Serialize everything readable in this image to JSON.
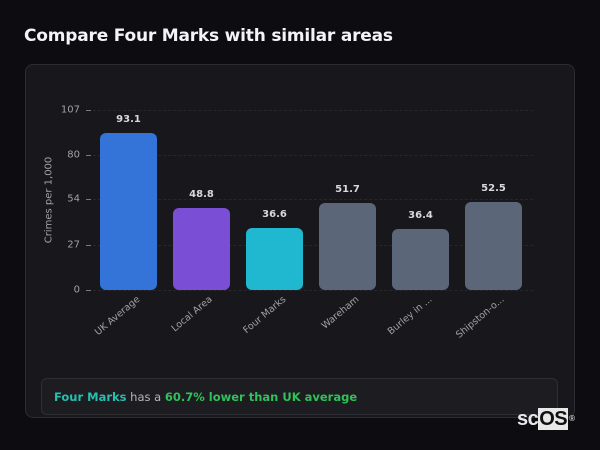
{
  "header": {
    "title": "Compare Four Marks with similar areas"
  },
  "chart_data": {
    "type": "bar",
    "title": "Compare Four Marks with similar areas",
    "xlabel": "",
    "ylabel": "Crimes per 1,000",
    "ylim": [
      0,
      107
    ],
    "yticks": [
      0,
      27,
      54,
      80,
      107
    ],
    "grid": true,
    "legend": null,
    "categories": [
      "UK Average",
      "Local Area",
      "Four Marks",
      "Wareham",
      "Burley in ...",
      "Shipston-o..."
    ],
    "values": [
      93.1,
      48.8,
      36.6,
      51.7,
      36.4,
      52.5
    ],
    "value_labels": [
      "93.1",
      "48.8",
      "36.6",
      "51.7",
      "36.4",
      "52.5"
    ],
    "colors": [
      "#3474d9",
      "#7a4fd6",
      "#1fb8d0",
      "#5b6678",
      "#5b6678",
      "#5b6678"
    ]
  },
  "summary": {
    "place": "Four Marks",
    "connector": " has a ",
    "stat": "60.7% lower than UK average"
  },
  "branding": {
    "logo_prefix": "sc",
    "logo_os": "OS",
    "logo_reg": "®"
  }
}
